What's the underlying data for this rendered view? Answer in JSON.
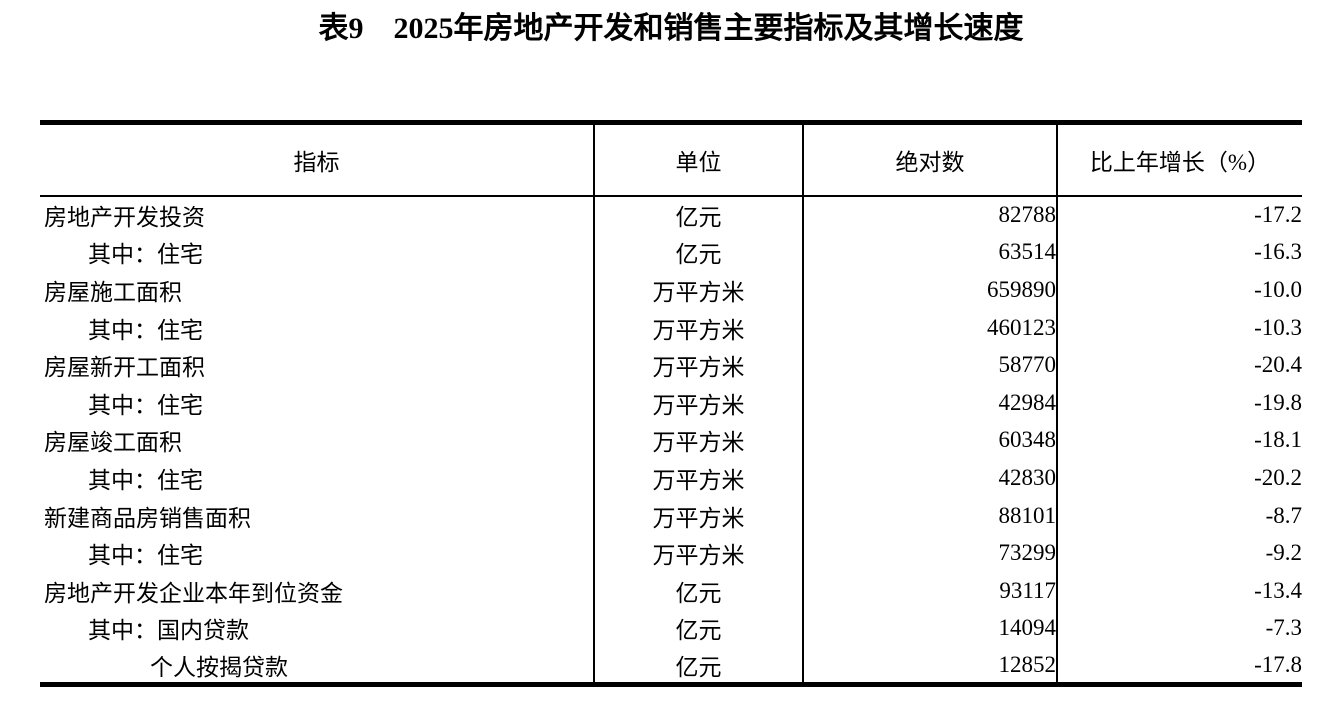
{
  "title": "表9　2025年房地产开发和销售主要指标及其增长速度",
  "table": {
    "headers": {
      "indicator": "指标",
      "unit": "单位",
      "value": "绝对数",
      "growth": "比上年增长（%）"
    },
    "rows": [
      {
        "indicator": "房地产开发投资",
        "indent": 0,
        "unit": "亿元",
        "value": "82788",
        "growth": "-17.2"
      },
      {
        "indicator": "其中：住宅",
        "indent": 1,
        "unit": "亿元",
        "value": "63514",
        "growth": "-16.3"
      },
      {
        "indicator": "房屋施工面积",
        "indent": 0,
        "unit": "万平方米",
        "value": "659890",
        "growth": "-10.0"
      },
      {
        "indicator": "其中：住宅",
        "indent": 1,
        "unit": "万平方米",
        "value": "460123",
        "growth": "-10.3"
      },
      {
        "indicator": "房屋新开工面积",
        "indent": 0,
        "unit": "万平方米",
        "value": "58770",
        "growth": "-20.4"
      },
      {
        "indicator": "其中：住宅",
        "indent": 1,
        "unit": "万平方米",
        "value": "42984",
        "growth": "-19.8"
      },
      {
        "indicator": "房屋竣工面积",
        "indent": 0,
        "unit": "万平方米",
        "value": "60348",
        "growth": "-18.1"
      },
      {
        "indicator": "其中：住宅",
        "indent": 1,
        "unit": "万平方米",
        "value": "42830",
        "growth": "-20.2"
      },
      {
        "indicator": "新建商品房销售面积",
        "indent": 0,
        "unit": "万平方米",
        "value": "88101",
        "growth": "-8.7"
      },
      {
        "indicator": "其中：住宅",
        "indent": 1,
        "unit": "万平方米",
        "value": "73299",
        "growth": "-9.2"
      },
      {
        "indicator": "房地产开发企业本年到位资金",
        "indent": 0,
        "unit": "亿元",
        "value": "93117",
        "growth": "-13.4"
      },
      {
        "indicator": "其中：国内贷款",
        "indent": 1,
        "unit": "亿元",
        "value": "14094",
        "growth": "-7.3"
      },
      {
        "indicator": "个人按揭贷款",
        "indent": 2,
        "unit": "亿元",
        "value": "12852",
        "growth": "-17.8"
      }
    ]
  }
}
